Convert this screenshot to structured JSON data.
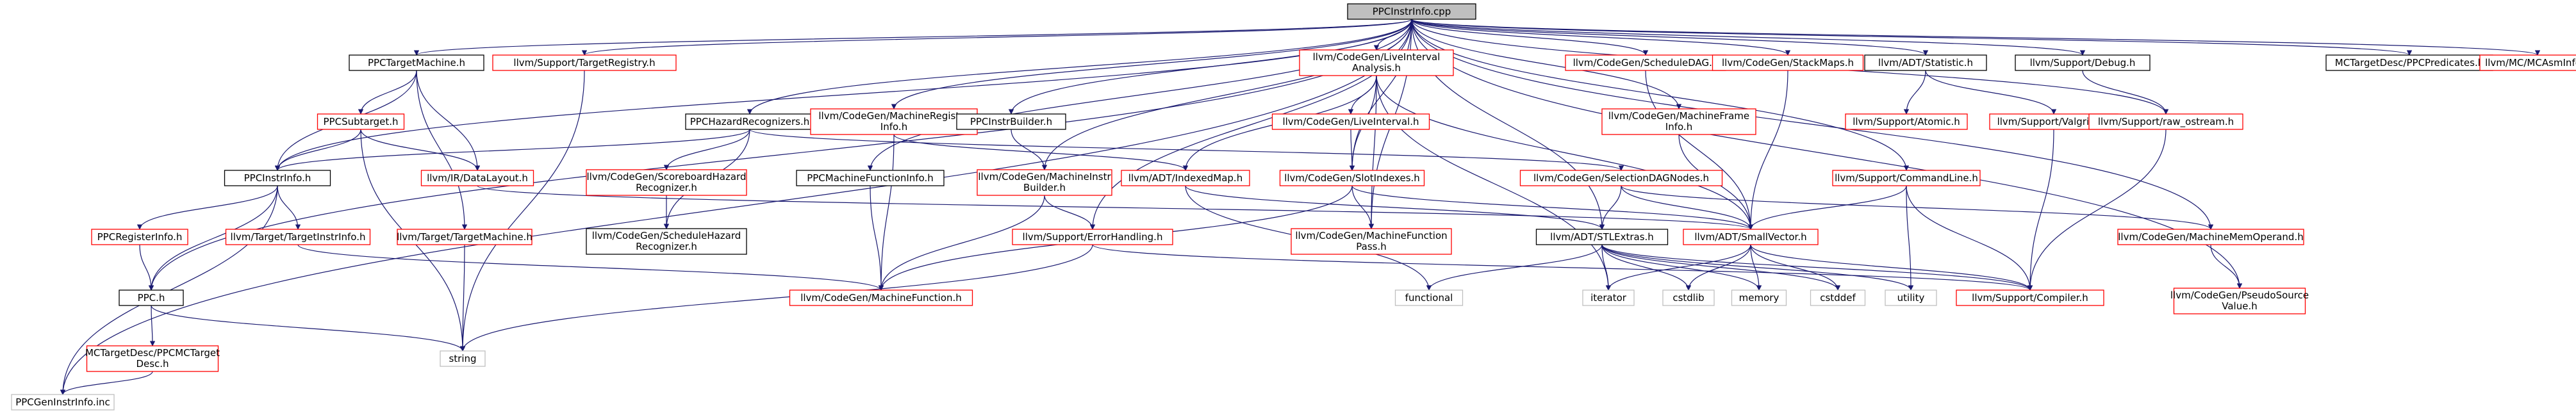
{
  "colors": {
    "black_border": "#000000",
    "red_border": "#ff0000",
    "gray_border": "#bfbfbf",
    "root_fill": "#bfbfbf",
    "node_fill": "#ffffff",
    "edge": "#191970",
    "gray_text": "#8c8c8c"
  },
  "nodes": {
    "root": {
      "lines": [
        "PPCInstrInfo.cpp"
      ],
      "style": "root"
    },
    "ppctm": {
      "lines": [
        "PPCTargetMachine.h"
      ],
      "style": "black"
    },
    "targetreg": {
      "lines": [
        "llvm/Support/TargetRegistry.h"
      ],
      "style": "red"
    },
    "ppchazard": {
      "lines": [
        "PPCHazardRecognizers.h"
      ],
      "style": "black"
    },
    "mcregister": {
      "lines": [
        "llvm/CodeGen/MachineRegister",
        "Info.h"
      ],
      "style": "red"
    },
    "ppcinstrbuilder": {
      "lines": [
        "PPCInstrBuilder.h"
      ],
      "style": "black"
    },
    "liveinterval_analysis": {
      "lines": [
        "llvm/CodeGen/LiveInterval",
        "Analysis.h"
      ],
      "style": "red"
    },
    "scheddag": {
      "lines": [
        "llvm/CodeGen/ScheduleDAG.h"
      ],
      "style": "red"
    },
    "stackmaps": {
      "lines": [
        "llvm/CodeGen/StackMaps.h"
      ],
      "style": "red"
    },
    "statistic": {
      "lines": [
        "llvm/ADT/Statistic.h"
      ],
      "style": "black"
    },
    "debug": {
      "lines": [
        "llvm/Support/Debug.h"
      ],
      "style": "black"
    },
    "predicates": {
      "lines": [
        "MCTargetDesc/PPCPredicates.h"
      ],
      "style": "black"
    },
    "mcasminfo": {
      "lines": [
        "llvm/MC/MCAsmInfo.h"
      ],
      "style": "red"
    },
    "ppcsubtarget": {
      "lines": [
        "PPCSubtarget.h"
      ],
      "style": "red"
    },
    "liveinterval": {
      "lines": [
        "llvm/CodeGen/LiveInterval.h"
      ],
      "style": "red"
    },
    "mframeinfo": {
      "lines": [
        "llvm/CodeGen/MachineFrame",
        "Info.h"
      ],
      "style": "red"
    },
    "atomic": {
      "lines": [
        "llvm/Support/Atomic.h"
      ],
      "style": "red"
    },
    "valgrind": {
      "lines": [
        "llvm/Support/Valgrind.h"
      ],
      "style": "red"
    },
    "raw_ostream": {
      "lines": [
        "llvm/Support/raw_ostream.h"
      ],
      "style": "red"
    },
    "ppcinstrinfo_h": {
      "lines": [
        "PPCInstrInfo.h"
      ],
      "style": "black"
    },
    "datalayout": {
      "lines": [
        "llvm/IR/DataLayout.h"
      ],
      "style": "red"
    },
    "scoreboard": {
      "lines": [
        "llvm/CodeGen/ScoreboardHazard",
        "Recognizer.h"
      ],
      "style": "red"
    },
    "ppcmfi": {
      "lines": [
        "PPCMachineFunctionInfo.h"
      ],
      "style": "black"
    },
    "minstrbuilder": {
      "lines": [
        "llvm/CodeGen/MachineInstr",
        "Builder.h"
      ],
      "style": "red"
    },
    "indexedmap": {
      "lines": [
        "llvm/ADT/IndexedMap.h"
      ],
      "style": "red"
    },
    "slotindexes": {
      "lines": [
        "llvm/CodeGen/SlotIndexes.h"
      ],
      "style": "red"
    },
    "seldagnodes": {
      "lines": [
        "llvm/CodeGen/SelectionDAGNodes.h"
      ],
      "style": "red"
    },
    "commandline": {
      "lines": [
        "llvm/Support/CommandLine.h"
      ],
      "style": "red"
    },
    "ppcreginfo": {
      "lines": [
        "PPCRegisterInfo.h"
      ],
      "style": "red"
    },
    "targetinstrinfo": {
      "lines": [
        "llvm/Target/TargetInstrInfo.h"
      ],
      "style": "red"
    },
    "targetmachine": {
      "lines": [
        "llvm/Target/TargetMachine.h"
      ],
      "style": "red"
    },
    "schedhazard": {
      "lines": [
        "llvm/CodeGen/ScheduleHazard",
        "Recognizer.h"
      ],
      "style": "black"
    },
    "errorhandling": {
      "lines": [
        "llvm/Support/ErrorHandling.h"
      ],
      "style": "red"
    },
    "stlextras": {
      "lines": [
        "llvm/ADT/STLExtras.h"
      ],
      "style": "black"
    },
    "mfpass": {
      "lines": [
        "llvm/CodeGen/MachineFunction",
        "Pass.h"
      ],
      "style": "red"
    },
    "smallvector": {
      "lines": [
        "llvm/ADT/SmallVector.h"
      ],
      "style": "red"
    },
    "mmemoperand": {
      "lines": [
        "llvm/CodeGen/MachineMemOperand.h"
      ],
      "style": "red"
    },
    "ppc_h": {
      "lines": [
        "PPC.h"
      ],
      "style": "black"
    },
    "mfunction": {
      "lines": [
        "llvm/CodeGen/MachineFunction.h"
      ],
      "style": "red"
    },
    "functional": {
      "lines": [
        "functional"
      ],
      "style": "gray"
    },
    "iterator": {
      "lines": [
        "iterator"
      ],
      "style": "gray"
    },
    "cstdlib": {
      "lines": [
        "cstdlib"
      ],
      "style": "gray"
    },
    "memory": {
      "lines": [
        "memory"
      ],
      "style": "gray"
    },
    "cstddef": {
      "lines": [
        "cstddef"
      ],
      "style": "gray"
    },
    "utility": {
      "lines": [
        "utility"
      ],
      "style": "gray"
    },
    "compiler": {
      "lines": [
        "llvm/Support/Compiler.h"
      ],
      "style": "red"
    },
    "pseudosource": {
      "lines": [
        "llvm/CodeGen/PseudoSource",
        "Value.h"
      ],
      "style": "red"
    },
    "ppcmctargetdesc": {
      "lines": [
        "MCTargetDesc/PPCMCTarget",
        "Desc.h"
      ],
      "style": "red"
    },
    "string": {
      "lines": [
        "string"
      ],
      "style": "gray"
    },
    "ppcgeninstrinfo": {
      "lines": [
        "PPCGenInstrInfo.inc"
      ],
      "style": "gray"
    }
  }
}
